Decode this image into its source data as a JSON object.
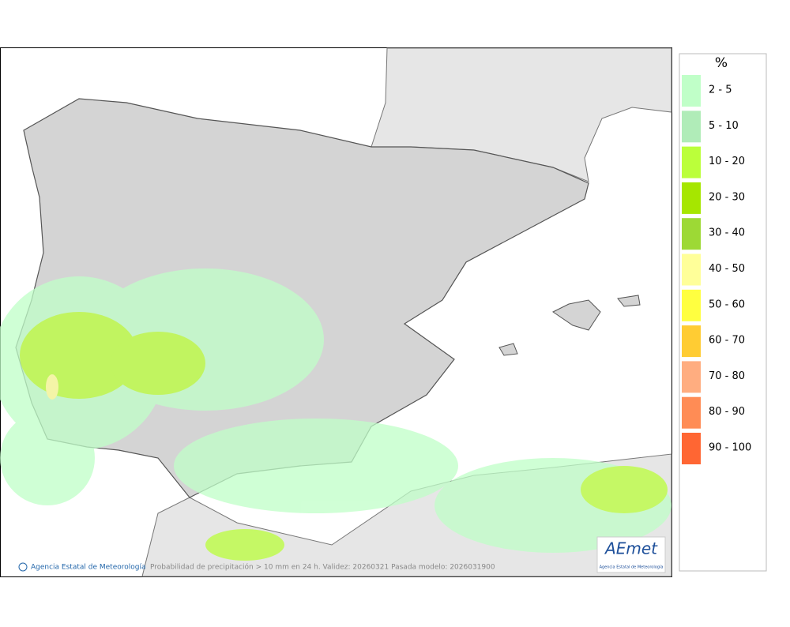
{
  "legend": {
    "title": "%",
    "items": [
      {
        "label": "2 - 5",
        "color": "#c0ffc8"
      },
      {
        "label": "5 - 10",
        "color": "#b0ecb8"
      },
      {
        "label": "10 - 20",
        "color": "#bbff3a"
      },
      {
        "label": "20 - 30",
        "color": "#a6e600"
      },
      {
        "label": "30 - 40",
        "color": "#9dd935"
      },
      {
        "label": "40 - 50",
        "color": "#ffff99"
      },
      {
        "label": "50 - 60",
        "color": "#ffff40"
      },
      {
        "label": "60 - 70",
        "color": "#ffcc33"
      },
      {
        "label": "70 - 80",
        "color": "#ffad80"
      },
      {
        "label": "80 - 90",
        "color": "#ff8c55"
      },
      {
        "label": "90 - 100",
        "color": "#ff6633"
      }
    ]
  },
  "footer": {
    "agency": "Agencia Estatal de Meteorología",
    "description": "Probabilidad de precipitación > 10 mm en 24 h. Validez: 20260321 Pasada modelo: 2026031900"
  },
  "logo": {
    "name": "AEmet",
    "subtitle": "Agencia Estatal de Meteorología"
  }
}
